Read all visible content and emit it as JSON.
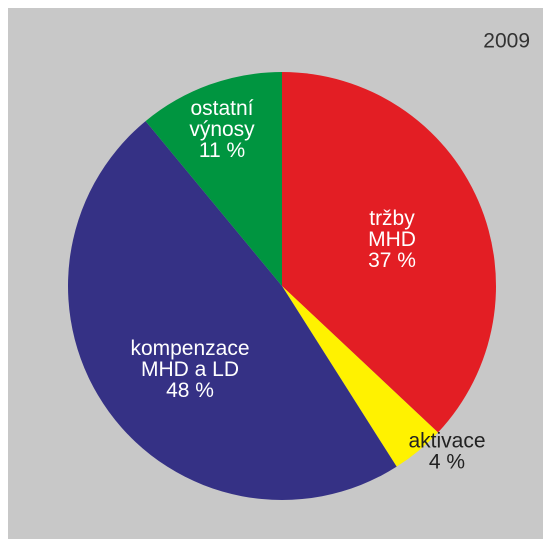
{
  "chart_data": {
    "type": "pie",
    "title": "2009",
    "categories": [
      [
        "tržby",
        "MHD"
      ],
      [
        "aktivace"
      ],
      [
        "kompenzace",
        "MHD a LD"
      ],
      [
        "ostatní",
        "výnosy"
      ]
    ],
    "values": [
      37,
      4,
      48,
      11
    ],
    "value_labels": [
      "37 %",
      "4 %",
      "48 %",
      "11 %"
    ],
    "colors": [
      "#e31e24",
      "#fff200",
      "#353185",
      "#009540"
    ]
  }
}
